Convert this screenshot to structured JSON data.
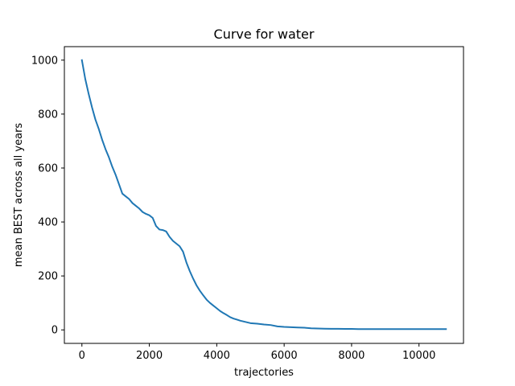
{
  "chart_data": {
    "type": "line",
    "title": "Curve for water",
    "xlabel": "trajectories",
    "ylabel": "mean BEST across all years",
    "xlim": [
      -520,
      11320
    ],
    "ylim": [
      -50,
      1050
    ],
    "xticks": [
      0,
      2000,
      4000,
      6000,
      8000,
      10000
    ],
    "yticks": [
      0,
      200,
      400,
      600,
      800,
      1000
    ],
    "grid": false,
    "legend": "none",
    "series": [
      {
        "color": "#1f77b4",
        "x": [
          0,
          100,
          200,
          300,
          400,
          500,
          600,
          700,
          800,
          900,
          1000,
          1100,
          1200,
          1300,
          1400,
          1500,
          1600,
          1700,
          1800,
          1900,
          2000,
          2100,
          2200,
          2300,
          2400,
          2500,
          2600,
          2700,
          2800,
          2900,
          3000,
          3100,
          3200,
          3300,
          3400,
          3500,
          3600,
          3700,
          3800,
          3900,
          4000,
          4100,
          4200,
          4300,
          4400,
          4500,
          4600,
          4700,
          4800,
          4900,
          5000,
          5200,
          5400,
          5600,
          5800,
          6000,
          6200,
          6400,
          6600,
          6800,
          7000,
          7200,
          7400,
          7600,
          7800,
          8000,
          8200,
          8500,
          9000,
          9500,
          10000,
          10500,
          10800
        ],
        "values": [
          1000,
          930,
          875,
          825,
          780,
          745,
          705,
          670,
          640,
          605,
          575,
          540,
          505,
          495,
          485,
          470,
          460,
          450,
          437,
          430,
          425,
          415,
          385,
          372,
          370,
          365,
          345,
          330,
          320,
          310,
          290,
          250,
          218,
          190,
          165,
          145,
          128,
          112,
          100,
          90,
          80,
          70,
          62,
          55,
          47,
          42,
          38,
          34,
          31,
          28,
          25,
          23,
          20,
          18,
          13,
          11,
          10,
          9,
          8,
          6,
          5,
          4.5,
          4,
          4,
          3.5,
          3.5,
          3,
          3,
          3,
          3,
          3,
          3,
          3
        ]
      }
    ]
  }
}
